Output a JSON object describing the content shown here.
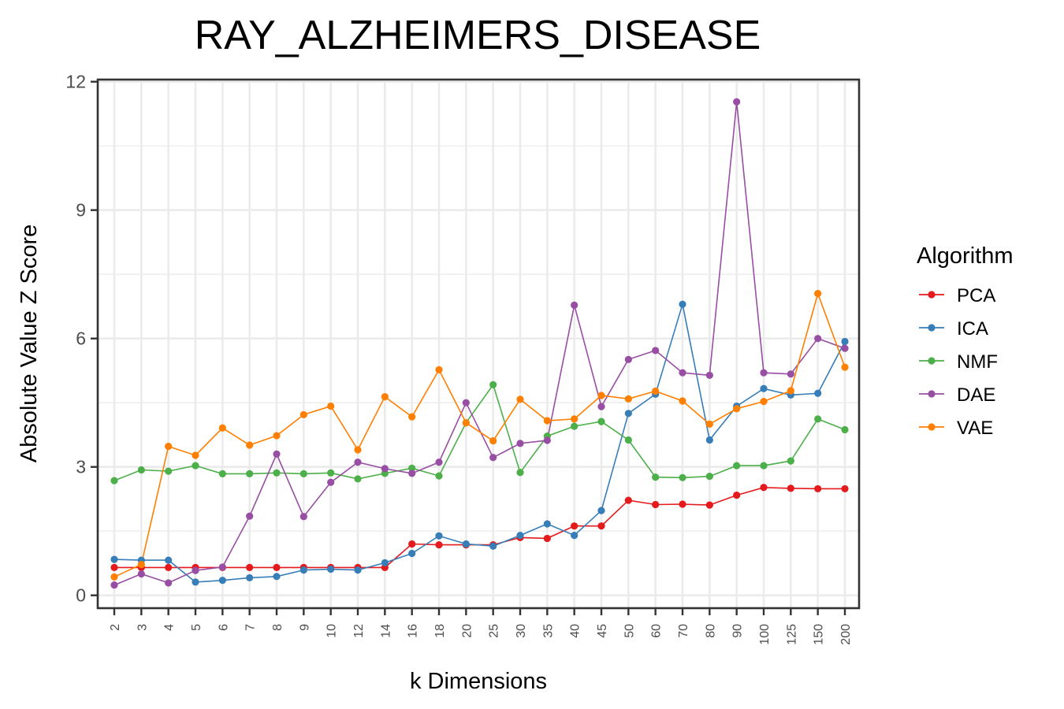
{
  "chart_data": {
    "type": "line",
    "title": "RAY_ALZHEIMERS_DISEASE",
    "xlabel": "k Dimensions",
    "ylabel": "Absolute Value Z Score",
    "categories": [
      "2",
      "3",
      "4",
      "5",
      "6",
      "7",
      "8",
      "9",
      "10",
      "12",
      "14",
      "16",
      "18",
      "20",
      "25",
      "30",
      "35",
      "40",
      "45",
      "50",
      "60",
      "70",
      "80",
      "90",
      "100",
      "125",
      "150",
      "200"
    ],
    "ylim": [
      -0.3,
      12.05
    ],
    "yticks": [
      0,
      3,
      6,
      9,
      12
    ],
    "grid": true,
    "legend_title": "Algorithm",
    "legend_position": "right",
    "series": [
      {
        "name": "PCA",
        "color": "#e41a1c",
        "values": [
          0.65,
          0.65,
          0.65,
          0.65,
          0.65,
          0.65,
          0.65,
          0.65,
          0.65,
          0.65,
          0.65,
          1.2,
          1.18,
          1.18,
          1.18,
          1.35,
          1.33,
          1.62,
          1.62,
          2.22,
          2.12,
          2.13,
          2.11,
          2.34,
          2.52,
          2.5,
          2.49,
          2.49
        ]
      },
      {
        "name": "ICA",
        "color": "#377eb8",
        "values": [
          0.84,
          0.82,
          0.82,
          0.31,
          0.35,
          0.41,
          0.44,
          0.59,
          0.61,
          0.59,
          0.76,
          0.98,
          1.39,
          1.2,
          1.15,
          1.4,
          1.67,
          1.4,
          1.98,
          4.25,
          4.7,
          6.8,
          3.63,
          4.42,
          4.83,
          4.68,
          4.72,
          5.93
        ]
      },
      {
        "name": "NMF",
        "color": "#4daf4a",
        "values": [
          2.68,
          2.93,
          2.9,
          3.03,
          2.84,
          2.84,
          2.86,
          2.84,
          2.86,
          2.72,
          2.85,
          2.97,
          2.79,
          4.03,
          4.92,
          2.87,
          3.72,
          3.95,
          4.06,
          3.63,
          2.76,
          2.75,
          2.78,
          3.03,
          3.03,
          3.14,
          4.12,
          3.87
        ]
      },
      {
        "name": "DAE",
        "color": "#984ea3",
        "values": [
          0.24,
          0.5,
          0.29,
          0.58,
          0.66,
          1.85,
          3.3,
          1.84,
          2.64,
          3.11,
          2.96,
          2.85,
          3.11,
          4.5,
          3.22,
          3.55,
          3.62,
          6.78,
          4.41,
          5.51,
          5.72,
          5.2,
          5.14,
          11.53,
          5.2,
          5.17,
          6.0,
          5.77
        ]
      },
      {
        "name": "VAE",
        "color": "#ff7f00",
        "values": [
          0.43,
          0.72,
          3.48,
          3.27,
          3.91,
          3.51,
          3.73,
          4.22,
          4.42,
          3.4,
          4.64,
          4.17,
          5.27,
          4.03,
          3.61,
          4.58,
          4.08,
          4.12,
          4.67,
          4.59,
          4.77,
          4.54,
          4.0,
          4.36,
          4.53,
          4.78,
          7.05,
          5.33
        ]
      }
    ]
  }
}
